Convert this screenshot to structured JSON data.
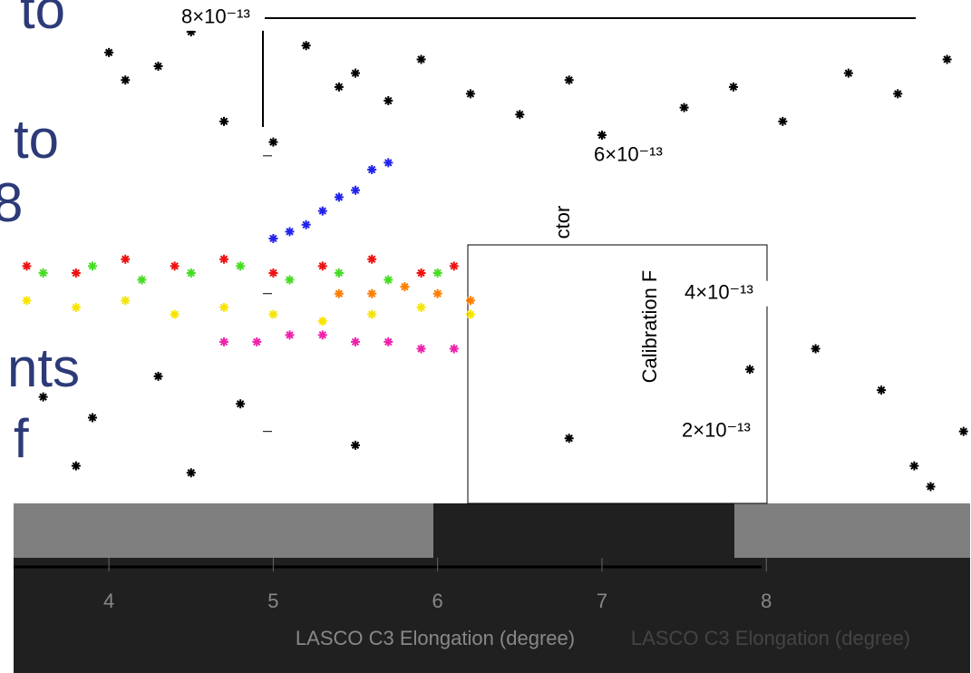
{
  "slide_fragments": [
    "to",
    "to",
    "8",
    "nts",
    "f"
  ],
  "chart_data": {
    "type": "scatter",
    "y_label_parts": [
      "ctor",
      "Calibration F"
    ],
    "x_label": "LASCO C3 Elongation (degree)",
    "x_label_ghost": "LASCO C3 Elongation (degree)",
    "xlim": [
      3.42,
      9.24
    ],
    "ylim": [
      1e-14,
      8.13e-13
    ],
    "xticks": [
      4,
      5,
      6,
      7,
      8
    ],
    "yticks": [
      {
        "value": 8e-13,
        "label": "8×10⁻¹³"
      },
      {
        "value": 6e-13,
        "label": "6×10⁻¹³"
      },
      {
        "value": 4e-13,
        "label": "4×10⁻¹³"
      },
      {
        "value": 2e-13,
        "label": "2×10⁻¹³"
      }
    ],
    "series": [
      {
        "color": "#000000",
        "x": [
          4.0,
          4.1,
          4.3,
          4.5,
          4.7,
          5.0,
          5.2,
          5.4,
          5.5,
          5.7,
          5.9,
          6.2,
          6.5,
          6.8,
          7.0,
          7.2,
          7.5,
          7.8,
          8.1,
          8.5,
          8.8,
          9.1,
          3.6,
          3.9,
          4.3,
          4.8,
          5.5,
          6.8,
          8.7,
          8.9,
          9.0,
          9.2,
          3.8,
          4.5,
          7.9,
          8.3
        ],
        "values": [
          7.5e-13,
          7.1e-13,
          7.3e-13,
          7.8e-13,
          6.5e-13,
          6.2e-13,
          7.6e-13,
          7e-13,
          7.2e-13,
          6.8e-13,
          7.4e-13,
          6.9e-13,
          6.6e-13,
          7.1e-13,
          6.3e-13,
          6e-13,
          6.7e-13,
          7e-13,
          6.5e-13,
          7.2e-13,
          6.9e-13,
          7.4e-13,
          2.5e-13,
          2.2e-13,
          2.8e-13,
          2.4e-13,
          1.8e-13,
          1.9e-13,
          2.6e-13,
          1.5e-13,
          1.2e-13,
          2e-13,
          1.5e-13,
          1.4e-13,
          2.9e-13,
          3.2e-13
        ]
      },
      {
        "color": "#2222ee",
        "x": [
          5.0,
          5.1,
          5.2,
          5.3,
          5.4,
          5.5,
          5.6,
          5.7
        ],
        "values": [
          4.8e-13,
          4.9e-13,
          5e-13,
          5.2e-13,
          5.4e-13,
          5.5e-13,
          5.8e-13,
          5.9e-13
        ]
      },
      {
        "color": "#ee1111",
        "x": [
          3.5,
          3.8,
          4.1,
          4.4,
          4.7,
          5.0,
          5.3,
          5.6,
          5.9,
          6.1
        ],
        "values": [
          4.4e-13,
          4.3e-13,
          4.5e-13,
          4.4e-13,
          4.5e-13,
          4.3e-13,
          4.4e-13,
          4.5e-13,
          4.3e-13,
          4.4e-13
        ]
      },
      {
        "color": "#44dd22",
        "x": [
          3.6,
          3.9,
          4.2,
          4.5,
          4.8,
          5.1,
          5.4,
          5.7,
          6.0
        ],
        "values": [
          4.3e-13,
          4.4e-13,
          4.2e-13,
          4.3e-13,
          4.4e-13,
          4.2e-13,
          4.3e-13,
          4.2e-13,
          4.3e-13
        ]
      },
      {
        "color": "#ff7f00",
        "x": [
          5.4,
          5.6,
          5.8,
          6.0,
          6.2
        ],
        "values": [
          4e-13,
          4e-13,
          4.1e-13,
          4e-13,
          3.9e-13
        ]
      },
      {
        "color": "#f5e400",
        "x": [
          3.5,
          3.8,
          4.1,
          4.4,
          4.7,
          5.0,
          5.3,
          5.6,
          5.9,
          6.2
        ],
        "values": [
          3.9e-13,
          3.8e-13,
          3.9e-13,
          3.7e-13,
          3.8e-13,
          3.7e-13,
          3.6e-13,
          3.7e-13,
          3.8e-13,
          3.7e-13
        ]
      },
      {
        "color": "#ee22aa",
        "x": [
          4.7,
          4.9,
          5.1,
          5.3,
          5.5,
          5.7,
          5.9,
          6.1
        ],
        "values": [
          3.3e-13,
          3.3e-13,
          3.4e-13,
          3.4e-13,
          3.3e-13,
          3.3e-13,
          3.2e-13,
          3.2e-13
        ]
      }
    ]
  }
}
